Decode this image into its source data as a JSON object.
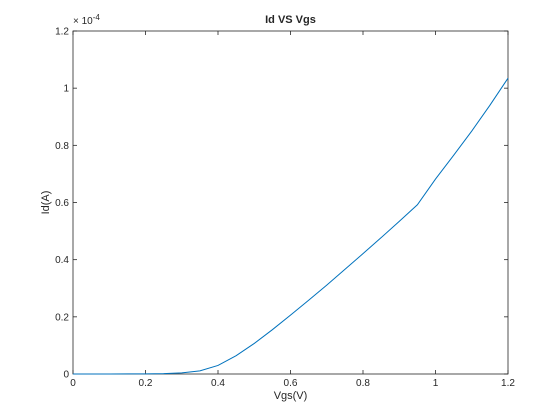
{
  "chart_data": {
    "type": "line",
    "title": "Id VS Vgs",
    "xlabel": "Vgs(V)",
    "ylabel": "Id(A)",
    "y_exponent_label": "× 10",
    "y_exponent_power": "-4",
    "xlim": [
      0,
      1.2
    ],
    "ylim": [
      0,
      1.2
    ],
    "x_ticks": [
      0,
      0.2,
      0.4,
      0.6,
      0.8,
      1,
      1.2
    ],
    "x_tick_labels": [
      "0",
      "0.2",
      "0.4",
      "0.6",
      "0.8",
      "1",
      "1.2"
    ],
    "y_ticks": [
      0,
      0.2,
      0.4,
      0.6,
      0.8,
      1,
      1.2
    ],
    "y_tick_labels": [
      "0",
      "0.2",
      "0.4",
      "0.6",
      "0.8",
      "1",
      "1.2"
    ],
    "grid": false,
    "series": [
      {
        "color": "#0072bd",
        "x": [
          0,
          0.1,
          0.2,
          0.25,
          0.3,
          0.35,
          0.4,
          0.45,
          0.5,
          0.55,
          0.6,
          0.65,
          0.7,
          0.75,
          0.8,
          0.85,
          0.9,
          0.95,
          1.0,
          1.05,
          1.1,
          1.15,
          1.2
        ],
        "y": [
          0,
          0.0001,
          0.0005,
          0.0015,
          0.004,
          0.011,
          0.03,
          0.064,
          0.107,
          0.155,
          0.206,
          0.258,
          0.311,
          0.366,
          0.421,
          0.477,
          0.534,
          0.592,
          0.682,
          0.765,
          0.85,
          0.94,
          1.035
        ]
      }
    ]
  }
}
